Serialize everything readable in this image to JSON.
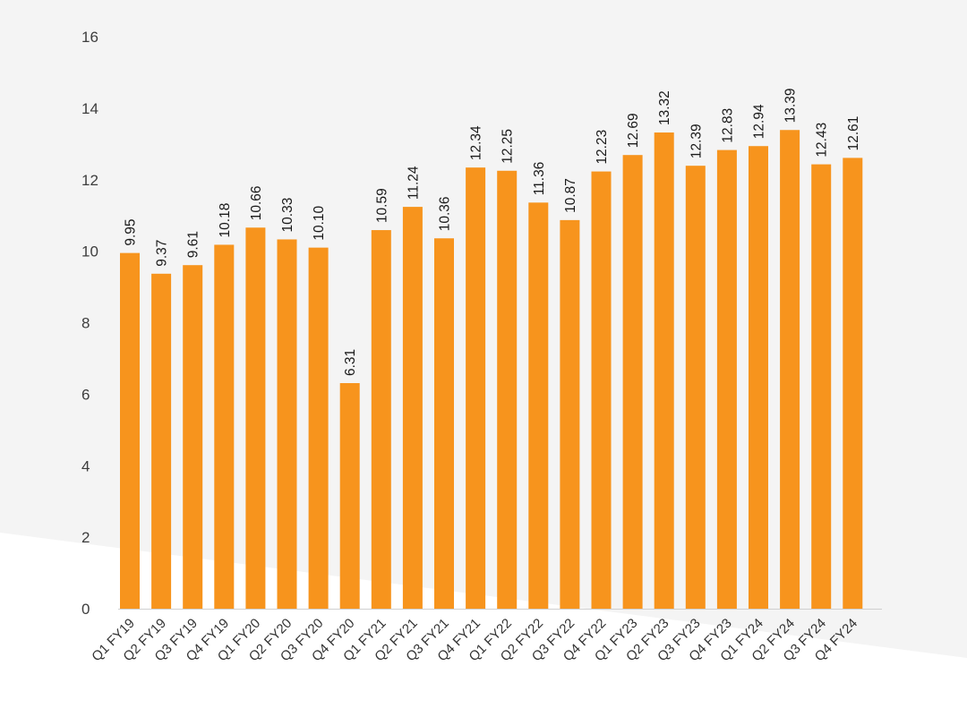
{
  "chart_data": {
    "type": "bar",
    "categories": [
      "Q1 FY19",
      "Q2 FY19",
      "Q3 FY19",
      "Q4 FY19",
      "Q1 FY20",
      "Q2 FY20",
      "Q3 FY20",
      "Q4 FY20",
      "Q1 FY21",
      "Q2 FY21",
      "Q3 FY21",
      "Q4 FY21",
      "Q1 FY22",
      "Q2 FY22",
      "Q3 FY22",
      "Q4 FY22",
      "Q1 FY23",
      "Q2 FY23",
      "Q3 FY23",
      "Q4 FY23",
      "Q1 FY24",
      "Q2 FY24",
      "Q3 FY24",
      "Q4 FY24"
    ],
    "values": [
      9.95,
      9.37,
      9.61,
      10.18,
      10.66,
      10.33,
      10.1,
      6.31,
      10.59,
      11.24,
      10.36,
      12.34,
      12.25,
      11.36,
      10.87,
      12.23,
      12.69,
      13.32,
      12.39,
      12.83,
      12.94,
      13.39,
      12.43,
      12.61
    ],
    "value_labels": [
      "9.95",
      "9.37",
      "9.61",
      "10.18",
      "10.66",
      "10.33",
      "10.10",
      "6.31",
      "10.59",
      "11.24",
      "10.36",
      "12.34",
      "12.25",
      "11.36",
      "10.87",
      "12.23",
      "12.69",
      "13.32",
      "12.39",
      "12.83",
      "12.94",
      "13.39",
      "12.43",
      "12.61"
    ],
    "yticks": [
      0,
      2,
      4,
      6,
      8,
      10,
      12,
      14,
      16
    ],
    "ylim": [
      0,
      16
    ],
    "title": "",
    "xlabel": "",
    "ylabel": "",
    "grid": false,
    "legend": "none",
    "colors": {
      "bar": "#f7941d",
      "background": "#ffffff",
      "background_band": "#f4f4f4",
      "axis": "#cfcfcf",
      "tick_text": "#3d3d3d",
      "label_text": "#1a1a1a"
    }
  }
}
